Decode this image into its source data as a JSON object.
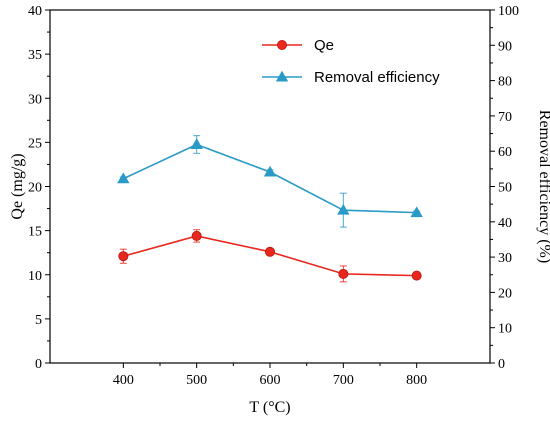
{
  "chart_data": {
    "type": "line",
    "xlabel": "T (°C)",
    "ylabel_left": "Qe (mg/g)",
    "ylabel_right": "Removal efficiency (%)",
    "x": [
      400,
      500,
      600,
      700,
      800
    ],
    "x_ticks": [
      400,
      500,
      600,
      700,
      800
    ],
    "xlim": [
      300,
      900
    ],
    "ylim_left": [
      0,
      40
    ],
    "yticks_left": [
      0,
      5,
      10,
      15,
      20,
      25,
      30,
      35,
      40
    ],
    "ylim_right": [
      0,
      100
    ],
    "yticks_right": [
      0,
      10,
      20,
      30,
      40,
      50,
      60,
      70,
      80,
      90,
      100
    ],
    "grid": false,
    "legend_position": "top-right",
    "series": [
      {
        "name": "Qe",
        "axis": "left",
        "marker": "circle",
        "color": "#e8281e",
        "values": [
          12.1,
          14.4,
          12.6,
          10.1,
          9.9
        ],
        "errors": [
          0.8,
          0.7,
          0.3,
          0.9,
          0.3
        ]
      },
      {
        "name": "Removal efficiency",
        "axis": "right",
        "marker": "triangle",
        "color": "#2a9bc6",
        "values": [
          52.2,
          61.9,
          54.1,
          43.3,
          42.6
        ],
        "errors": [
          0.5,
          2.5,
          0.6,
          4.8,
          0.4
        ]
      }
    ]
  }
}
